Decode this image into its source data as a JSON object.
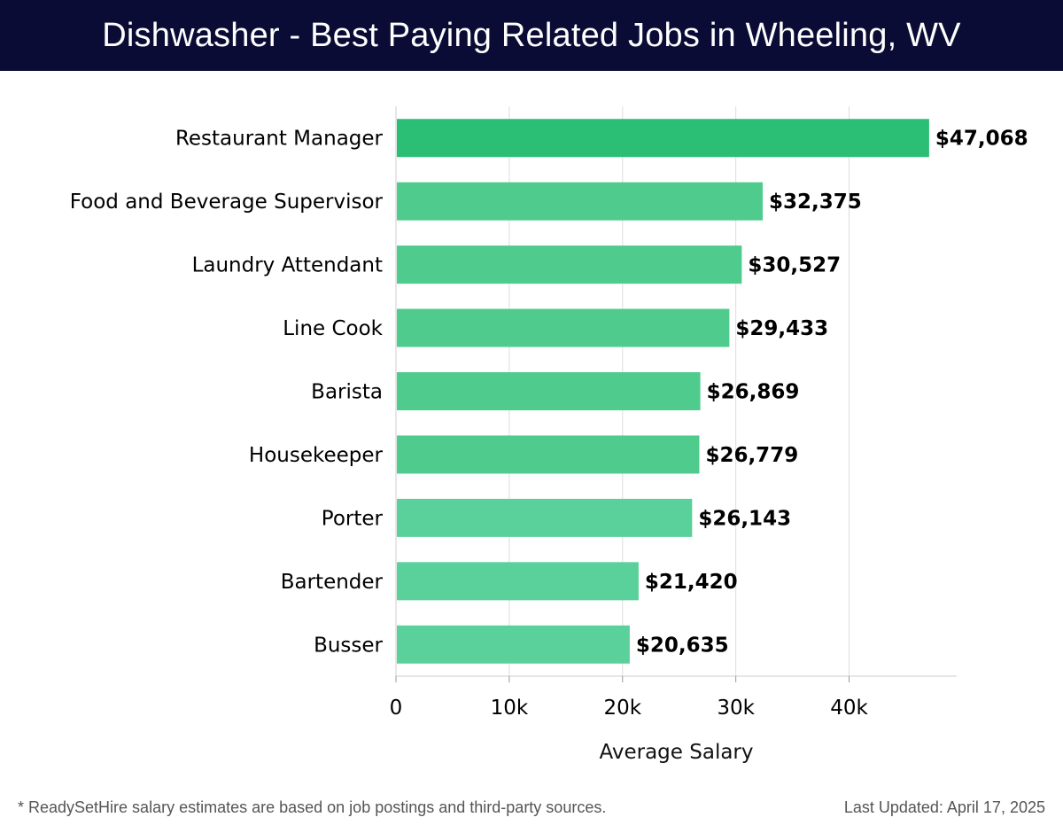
{
  "header": {
    "title": "Dishwasher - Best Paying Related Jobs in Wheeling, WV"
  },
  "colors": {
    "header_bg": "#0b0c35",
    "bar_top": "#2bbf75",
    "bar": "#4fcb8d",
    "bar_light": "#5ad09a",
    "grid": "#dddddd",
    "label": "#000000"
  },
  "chart_data": {
    "type": "bar",
    "orientation": "horizontal",
    "title": "Dishwasher - Best Paying Related Jobs in Wheeling, WV",
    "xlabel": "Average Salary",
    "ylabel": "",
    "xlim": [
      0,
      49500
    ],
    "x_ticks": [
      0,
      10000,
      20000,
      30000,
      40000
    ],
    "x_tick_labels": [
      "0",
      "10k",
      "20k",
      "30k",
      "40k"
    ],
    "grid": "vertical",
    "categories": [
      "Restaurant Manager",
      "Food and Beverage Supervisor",
      "Laundry Attendant",
      "Line Cook",
      "Barista",
      "Housekeeper",
      "Porter",
      "Bartender",
      "Busser"
    ],
    "values": [
      47068,
      32375,
      30527,
      29433,
      26869,
      26779,
      26143,
      21420,
      20635
    ],
    "value_labels": [
      "$47,068",
      "$32,375",
      "$30,527",
      "$29,433",
      "$26,869",
      "$26,779",
      "$26,143",
      "$21,420",
      "$20,635"
    ]
  },
  "footer": {
    "note": "* ReadySetHire salary estimates are based on job postings and third-party sources.",
    "updated": "Last Updated: April 17, 2025"
  }
}
